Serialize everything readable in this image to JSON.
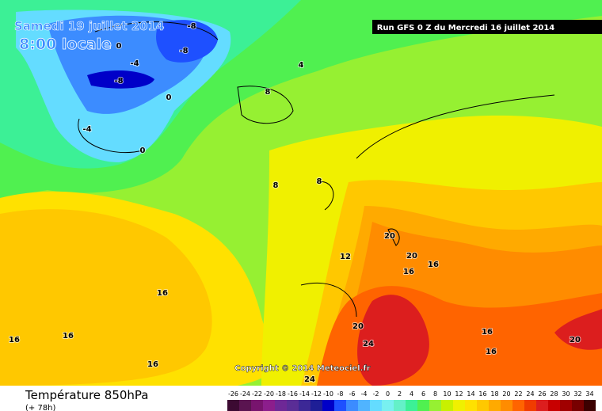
{
  "header": {
    "date": "Samedi 19 juillet 2014",
    "time": "8:00 locale",
    "run": "Run GFS 0 Z du Mercredi 16 juillet 2014"
  },
  "copyright": "Copyright © 2014 Meteociel.fr",
  "footer": {
    "title": "Température 850hPa",
    "subtitle": "(+ 78h)"
  },
  "contour_labels": [
    -8,
    -8,
    0,
    -4,
    -8,
    0,
    -4,
    0,
    4,
    8,
    8,
    8,
    12,
    20,
    20,
    16,
    16,
    16,
    16,
    16,
    16,
    20,
    24,
    24,
    16,
    16,
    20
  ],
  "scale": {
    "ticks": [
      -26,
      -24,
      -22,
      -20,
      -18,
      -16,
      -14,
      -12,
      -10,
      -8,
      -6,
      -4,
      -2,
      0,
      2,
      4,
      6,
      8,
      10,
      12,
      14,
      16,
      18,
      20,
      22,
      24,
      26,
      28,
      30,
      32,
      34
    ],
    "colors": [
      "#3c0a32",
      "#5a1450",
      "#78146e",
      "#8c1e8c",
      "#6e2896",
      "#5a2d96",
      "#3c2896",
      "#1e1e96",
      "#0000c8",
      "#1e50ff",
      "#3c8cff",
      "#50b4ff",
      "#64dcff",
      "#78f0f0",
      "#64f0c8",
      "#3cf096",
      "#50f050",
      "#96f032",
      "#c8f000",
      "#f0f000",
      "#ffe100",
      "#ffc800",
      "#ffaa00",
      "#ff8c00",
      "#ff6400",
      "#f03c00",
      "#dc1e1e",
      "#c80000",
      "#a00000",
      "#780000",
      "#3c0000"
    ]
  }
}
